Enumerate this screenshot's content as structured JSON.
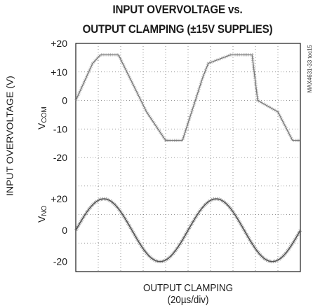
{
  "title": {
    "line1": "INPUT OVERVOLTAGE vs.",
    "line2": "OUTPUT CLAMPING (±15V SUPPLIES)"
  },
  "ylabel": "INPUT OVERVOLTAGE (V)",
  "xlabel": {
    "line1": "OUTPUT CLAMPING",
    "line2": "(20µs/div)"
  },
  "figure_ref": "MAX4631-33 toc15",
  "trace_labels": {
    "top": {
      "main": "V",
      "sub": "COM"
    },
    "bottom": {
      "main": "V",
      "sub": "NO"
    }
  },
  "y_ticks_top": [
    "+20",
    "+10",
    "0",
    "-10",
    "-20"
  ],
  "y_ticks_bottom": [
    "+20",
    "0",
    "-20"
  ],
  "chart_data": {
    "type": "line",
    "title": "INPUT OVERVOLTAGE vs. OUTPUT CLAMPING (±15V SUPPLIES)",
    "xlabel": "OUTPUT CLAMPING (20µs/div)",
    "ylabel": "INPUT OVERVOLTAGE (V)",
    "x_unit": "µs",
    "x_range": [
      0,
      200
    ],
    "grid": true,
    "grid_style": "dotted",
    "panels": [
      {
        "name": "VCOM",
        "ylim": [
          -25,
          25
        ],
        "y_ticks": [
          20,
          10,
          0,
          -10,
          -20
        ],
        "color": "#7a7a7a",
        "series": [
          {
            "name": "VCOM",
            "x": [
              0,
              15,
              22,
              38,
              58,
              63,
              80,
              95,
              113,
              118,
              138,
              157,
              162,
              180,
              193,
              200
            ],
            "y": [
              0,
              13,
              16,
              16,
              0,
              -4,
              -14,
              -14,
              8,
              13,
              16,
              16,
              0,
              -4,
              -14,
              -14
            ]
          }
        ]
      },
      {
        "name": "VNO",
        "ylim": [
          -30,
          30
        ],
        "y_ticks": [
          20,
          0,
          -20
        ],
        "color": "#555555",
        "series": [
          {
            "name": "VNO",
            "waveform": "sine",
            "amplitude": 20,
            "period_us": 100,
            "x": [
              0,
              10,
              20,
              30,
              40,
              50,
              60,
              70,
              80,
              90,
              100,
              110,
              120,
              130,
              140,
              150,
              160,
              170,
              180,
              190,
              200
            ],
            "y": [
              0,
              12,
              19,
              19,
              12,
              0,
              -12,
              -19,
              -19,
              -12,
              0,
              12,
              19,
              19,
              12,
              0,
              -12,
              -19,
              -19,
              -12,
              0
            ]
          }
        ]
      }
    ]
  }
}
